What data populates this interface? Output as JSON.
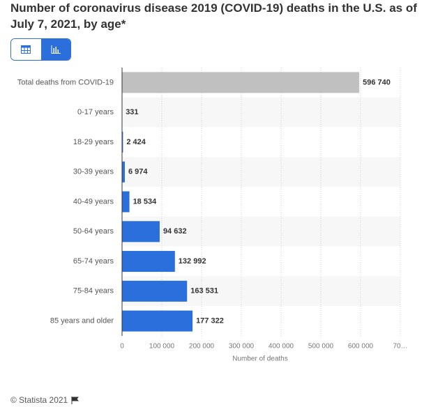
{
  "chart_data": {
    "type": "bar",
    "orientation": "horizontal",
    "title": "Number of coronavirus disease 2019 (COVID-19) deaths in the U.S. as of July 7, 2021, by age*",
    "categories": [
      "Total deaths from COVID-19",
      "0-17 years",
      "18-29 years",
      "30-39 years",
      "40-49 years",
      "50-64 years",
      "65-74 years",
      "75-84 years",
      "85 years and older"
    ],
    "values": [
      596740,
      331,
      2424,
      6974,
      18534,
      94632,
      132992,
      163531,
      177322
    ],
    "value_labels": [
      "596 740",
      "331",
      "2 424",
      "6 974",
      "18 534",
      "94 632",
      "132 992",
      "163 531",
      "177 322"
    ],
    "colors": [
      "#c0c0c0",
      "#2a6fdb",
      "#2a6fdb",
      "#2a6fdb",
      "#2a6fdb",
      "#2a6fdb",
      "#2a6fdb",
      "#2a6fdb",
      "#2a6fdb"
    ],
    "xlim": [
      0,
      700000
    ],
    "xticks": [
      0,
      {
        "value": 100000,
        "label": "100 000"
      },
      {
        "value": 200000,
        "label": "200 000"
      },
      {
        "value": 300000,
        "label": "300 000"
      },
      {
        "value": 400000,
        "label": "400 000"
      },
      {
        "value": 500000,
        "label": "500 000"
      },
      {
        "value": 600000,
        "label": "600 000"
      },
      {
        "value": 700000,
        "label": "70…"
      }
    ],
    "x_label": "Number of deaths",
    "grid": true
  },
  "footer": {
    "credit": "© Statista 2021"
  }
}
